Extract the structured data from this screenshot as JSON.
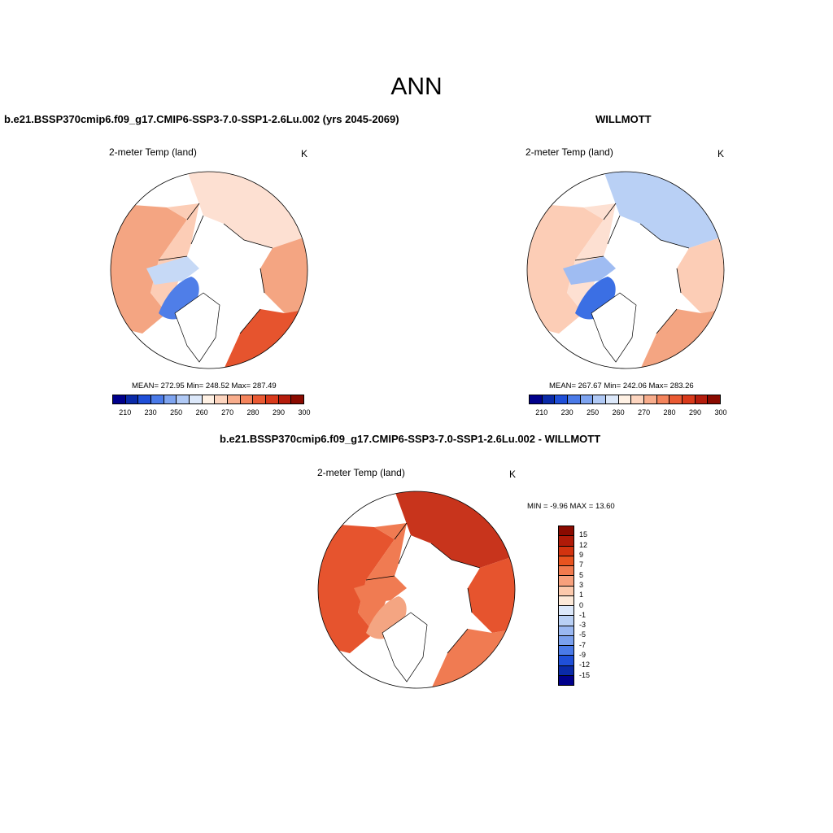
{
  "figure": {
    "title": "ANN"
  },
  "panels": [
    {
      "id": "model",
      "header": "b.e21.BSSP370cmip6.f09_g17.CMIP6-SSP3-7.0-SSP1-2.6Lu.002 (yrs 2045-2069)",
      "variable": "2-meter Temp (land)",
      "units": "K",
      "stats": "MEAN= 272.95  Min= 248.52  Max= 287.49",
      "colorbar_ticks": [
        "210",
        "230",
        "250",
        "260",
        "270",
        "280",
        "290",
        "300"
      ],
      "map_pattern": {
        "north_america_west": "#f4a582",
        "north_america_east": "#fccdb6",
        "greenland": "#ffffff",
        "hudson_region": "#4f7ee8",
        "arctic_archipelago": "#c6d9f6",
        "eurasia_north": "#fde0d2",
        "eurasia_central": "#f4a582",
        "europe_south": "#e6542e"
      }
    },
    {
      "id": "obs",
      "header": "WILLMOTT",
      "variable": "2-meter Temp (land)",
      "units": "K",
      "stats": "MEAN= 267.67  Min= 242.06  Max= 283.26",
      "colorbar_ticks": [
        "210",
        "230",
        "250",
        "260",
        "270",
        "280",
        "290",
        "300"
      ],
      "map_pattern": {
        "north_america_west": "#fccdb6",
        "north_america_east": "#fde0d2",
        "greenland": "#ffffff",
        "hudson_region": "#3b6fe4",
        "arctic_archipelago": "#9fbcf2",
        "eurasia_north": "#b9d0f5",
        "eurasia_central": "#fccdb6",
        "europe_south": "#f4a582"
      }
    },
    {
      "id": "diff",
      "header": "b.e21.BSSP370cmip6.f09_g17.CMIP6-SSP3-7.0-SSP1-2.6Lu.002 - WILLMOTT",
      "variable": "2-meter Temp (land)",
      "units": "K",
      "stats": "MIN =  -9.96 MAX =  13.60",
      "colorbar_ticks": [
        "15",
        "12",
        "9",
        "7",
        "5",
        "3",
        "1",
        "0",
        "-1",
        "-3",
        "-5",
        "-7",
        "-9",
        "-12",
        "-15"
      ],
      "map_pattern": {
        "north_america_west": "#e6542e",
        "north_america_east": "#f07b52",
        "greenland": "#ffffff",
        "hudson_region": "#f4a582",
        "arctic_archipelago": "#f07b52",
        "eurasia_north": "#c8341c",
        "eurasia_central": "#e6542e",
        "europe_south": "#f07b52"
      }
    }
  ],
  "colorbars": {
    "abs_colors": [
      "#00008b",
      "#0a2aa8",
      "#1f4fd8",
      "#4a7ae8",
      "#7ea4f0",
      "#b0c9f5",
      "#dce8fa",
      "#fff1e4",
      "#fdd5bf",
      "#f8ad8c",
      "#f4845c",
      "#ea5a33",
      "#d93a1b",
      "#b51d0d",
      "#8a0a00"
    ],
    "diff_colors": [
      "#8a0a00",
      "#b01a08",
      "#d2330f",
      "#e8531f",
      "#f17a4e",
      "#f7a07c",
      "#fcc9ac",
      "#fde9d8",
      "#dce8fa",
      "#b9d0f5",
      "#9ab8f2",
      "#7aa0ee",
      "#4a7ae8",
      "#1f4fd8",
      "#0a2aa8",
      "#00008b"
    ]
  }
}
